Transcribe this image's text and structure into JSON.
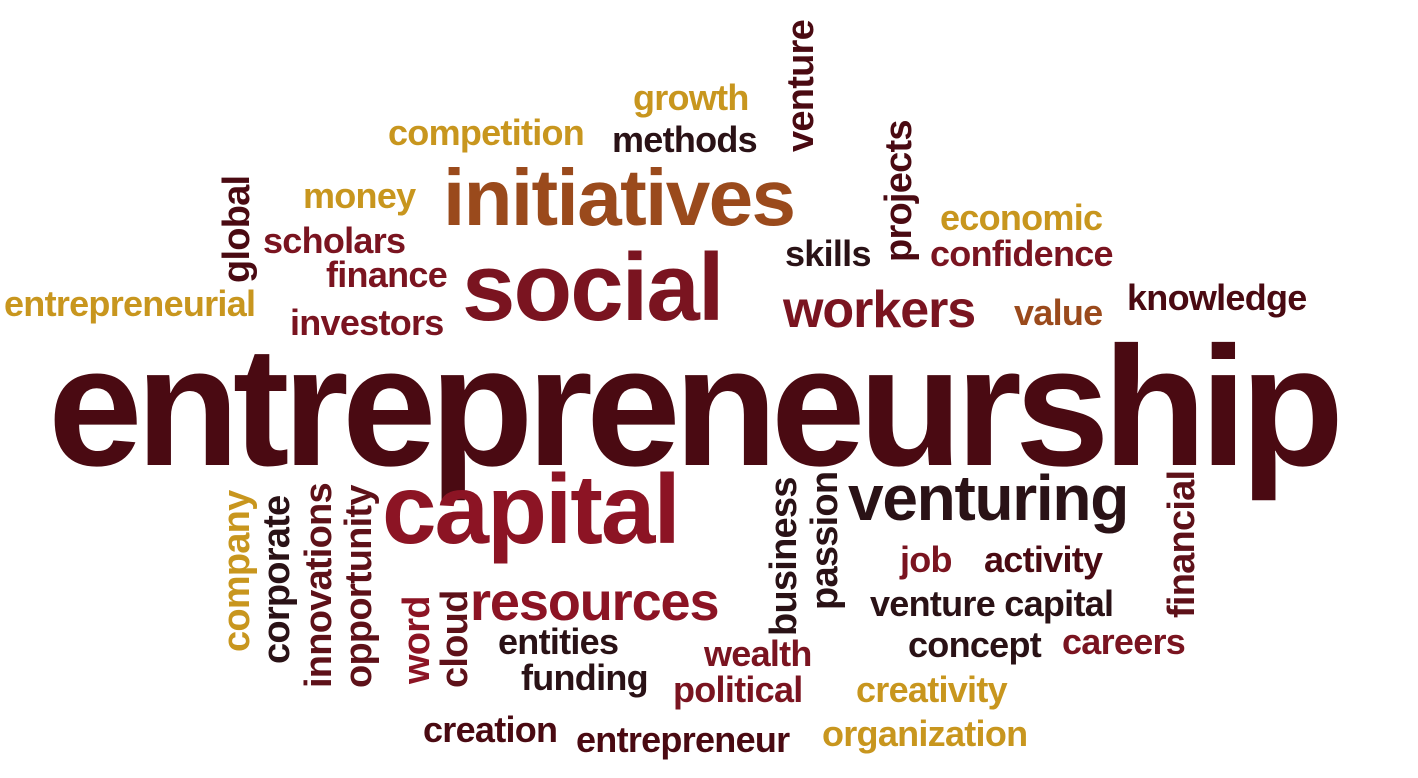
{
  "colors": {
    "darkest": "#4a0a12",
    "dark": "#5e1119",
    "maroon": "#7a1420",
    "crimson": "#8c1424",
    "rust": "#9a4a1c",
    "gold": "#c8961e",
    "charcoal": "#2a1216"
  },
  "words": {
    "entrepreneurship": "entrepreneurship",
    "social": "social",
    "capital": "capital",
    "initiatives": "initiatives",
    "venturing": "venturing",
    "resources": "resources",
    "workers": "workers",
    "growth": "growth",
    "competition": "competition",
    "methods": "methods",
    "venture_vertical": "venture",
    "money": "money",
    "scholars": "scholars",
    "finance": "finance",
    "global": "global",
    "entrepreneurial": "entrepreneurial",
    "investors": "investors",
    "projects": "projects",
    "economic": "economic",
    "confidence": "confidence",
    "skills": "skills",
    "value": "value",
    "knowledge": "knowledge",
    "company": "company",
    "corporate": "corporate",
    "innovations": "innovations",
    "opportunity": "opportunity",
    "word": "word",
    "cloud": "cloud",
    "entities": "entities",
    "funding": "funding",
    "wealth": "wealth",
    "political": "political",
    "creation": "creation",
    "entrepreneur": "entrepreneur",
    "business": "business",
    "passion": "passion",
    "job": "job",
    "activity": "activity",
    "financial": "financial",
    "venture_capital": "venture capital",
    "concept": "concept",
    "careers": "careers",
    "creativity": "creativity",
    "organization": "organization"
  }
}
